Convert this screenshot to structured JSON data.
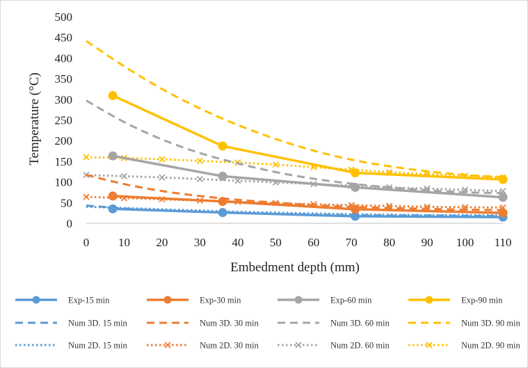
{
  "chart_data": {
    "type": "line",
    "title": "",
    "xlabel": "Embedment depth (mm)",
    "ylabel": "Temperature (°C)",
    "xlim": [
      0,
      110
    ],
    "ylim": [
      0,
      500
    ],
    "x_ticks": [
      "0",
      "10",
      "20",
      "30",
      "40",
      "50",
      "60",
      "70",
      "80",
      "90",
      "100",
      "110"
    ],
    "y_ticks": [
      "0",
      "50",
      "100",
      "150",
      "200",
      "250",
      "300",
      "350",
      "400",
      "450",
      "500"
    ],
    "grid": false,
    "legend_position": "bottom",
    "series": [
      {
        "name": "Exp-15 min",
        "style": "solid-marker",
        "color": "#5B9BD5",
        "points": [
          [
            7,
            35
          ],
          [
            36,
            26
          ],
          [
            71,
            17
          ],
          [
            110,
            15
          ]
        ]
      },
      {
        "name": "Exp-30 min",
        "style": "solid-marker",
        "color": "#ED7D31",
        "points": [
          [
            7,
            66
          ],
          [
            36,
            53
          ],
          [
            71,
            34
          ],
          [
            110,
            25
          ]
        ]
      },
      {
        "name": "Exp-60 min",
        "style": "solid-marker",
        "color": "#A5A5A5",
        "points": [
          [
            7,
            163
          ],
          [
            36,
            114
          ],
          [
            71,
            87
          ],
          [
            110,
            63
          ]
        ]
      },
      {
        "name": "Exp-90 min",
        "style": "solid-marker",
        "color": "#FFC000",
        "points": [
          [
            7,
            309
          ],
          [
            36,
            187
          ],
          [
            71,
            122
          ],
          [
            110,
            106
          ]
        ]
      },
      {
        "name": "Num 3D. 15 min",
        "style": "dashed",
        "color": "#5B9BD5",
        "points": [
          [
            0,
            43
          ],
          [
            10,
            36
          ],
          [
            20,
            31
          ],
          [
            30,
            28
          ],
          [
            40,
            25
          ],
          [
            50,
            23
          ],
          [
            60,
            21
          ],
          [
            70,
            20
          ],
          [
            80,
            19
          ],
          [
            90,
            19
          ],
          [
            100,
            18
          ],
          [
            110,
            18
          ]
        ]
      },
      {
        "name": "Num 3D. 30 min",
        "style": "dashed",
        "color": "#ED7D31",
        "points": [
          [
            0,
            117
          ],
          [
            10,
            95
          ],
          [
            20,
            78
          ],
          [
            30,
            66
          ],
          [
            40,
            57
          ],
          [
            50,
            50
          ],
          [
            60,
            44
          ],
          [
            70,
            40
          ],
          [
            80,
            37
          ],
          [
            90,
            35
          ],
          [
            100,
            33
          ],
          [
            110,
            32
          ]
        ]
      },
      {
        "name": "Num 3D. 60 min",
        "style": "dashed",
        "color": "#A5A5A5",
        "points": [
          [
            0,
            297
          ],
          [
            10,
            245
          ],
          [
            20,
            203
          ],
          [
            30,
            170
          ],
          [
            40,
            145
          ],
          [
            50,
            124
          ],
          [
            60,
            108
          ],
          [
            70,
            96
          ],
          [
            80,
            87
          ],
          [
            90,
            80
          ],
          [
            100,
            75
          ],
          [
            110,
            73
          ]
        ]
      },
      {
        "name": "Num 3D. 90 min",
        "style": "dashed",
        "color": "#FFC000",
        "points": [
          [
            0,
            441
          ],
          [
            10,
            380
          ],
          [
            20,
            325
          ],
          [
            30,
            278
          ],
          [
            40,
            238
          ],
          [
            50,
            204
          ],
          [
            60,
            176
          ],
          [
            70,
            154
          ],
          [
            80,
            138
          ],
          [
            90,
            126
          ],
          [
            100,
            117
          ],
          [
            110,
            112
          ]
        ]
      },
      {
        "name": "Num 2D. 15 min",
        "style": "dotted",
        "color": "#5B9BD5",
        "points": [
          [
            0,
            40
          ],
          [
            10,
            37
          ],
          [
            20,
            34
          ],
          [
            30,
            31
          ],
          [
            40,
            28
          ],
          [
            50,
            26
          ],
          [
            60,
            24
          ],
          [
            70,
            22
          ],
          [
            80,
            21
          ],
          [
            90,
            20
          ],
          [
            100,
            20
          ],
          [
            110,
            19
          ]
        ]
      },
      {
        "name": "Num 2D. 30 min",
        "style": "dotted-x",
        "color": "#ED7D31",
        "points": [
          [
            0,
            64
          ],
          [
            10,
            61
          ],
          [
            20,
            58
          ],
          [
            30,
            55
          ],
          [
            40,
            52
          ],
          [
            50,
            49
          ],
          [
            60,
            46
          ],
          [
            70,
            44
          ],
          [
            80,
            42
          ],
          [
            90,
            40
          ],
          [
            100,
            39
          ],
          [
            110,
            38
          ]
        ]
      },
      {
        "name": "Num 2D. 60 min",
        "style": "dotted-x",
        "color": "#A5A5A5",
        "points": [
          [
            0,
            117
          ],
          [
            10,
            114
          ],
          [
            20,
            111
          ],
          [
            30,
            107
          ],
          [
            40,
            103
          ],
          [
            50,
            99
          ],
          [
            60,
            95
          ],
          [
            70,
            91
          ],
          [
            80,
            87
          ],
          [
            90,
            84
          ],
          [
            100,
            81
          ],
          [
            110,
            78
          ]
        ]
      },
      {
        "name": "Num 2D. 90 min",
        "style": "dotted-x",
        "color": "#FFC000",
        "points": [
          [
            0,
            160
          ],
          [
            10,
            158
          ],
          [
            20,
            155
          ],
          [
            30,
            151
          ],
          [
            40,
            147
          ],
          [
            50,
            142
          ],
          [
            60,
            136
          ],
          [
            70,
            130
          ],
          [
            80,
            124
          ],
          [
            90,
            119
          ],
          [
            100,
            115
          ],
          [
            110,
            111
          ]
        ]
      }
    ]
  }
}
